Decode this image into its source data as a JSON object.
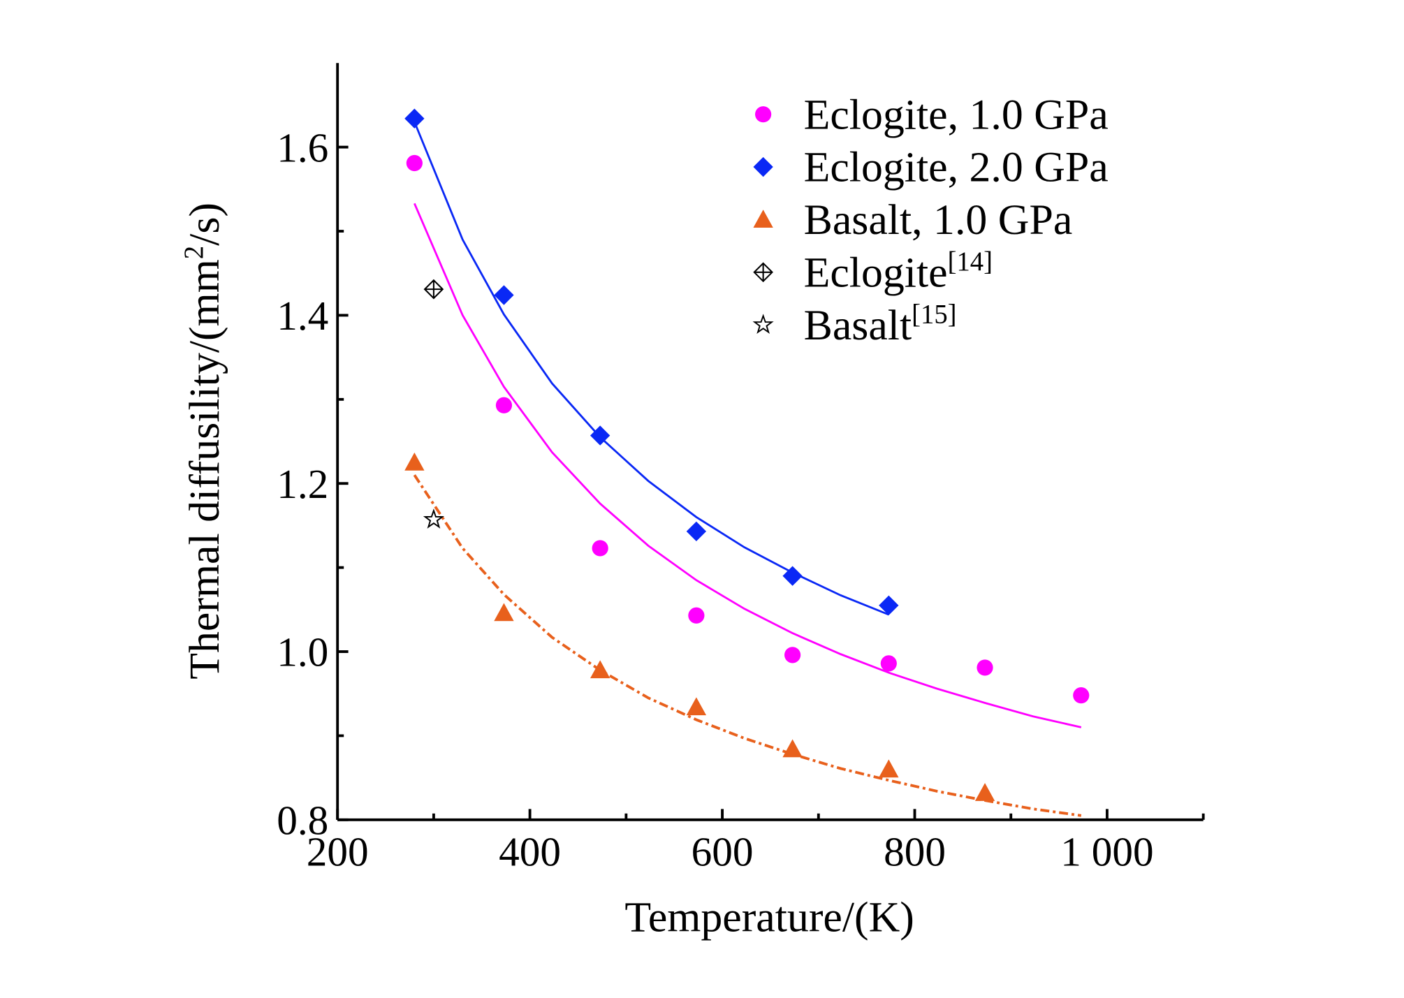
{
  "chart_data": {
    "type": "scatter",
    "title": "",
    "xlabel": "Temperature/(K)",
    "ylabel_parts": {
      "main": "Thermal diffusility/(mm",
      "sup": "2",
      "tail": "/s)"
    },
    "xlim": [
      200,
      1100
    ],
    "ylim": [
      0.8,
      1.7
    ],
    "x_ticks": [
      200,
      400,
      600,
      800,
      1000
    ],
    "x_tick_labels": [
      "200",
      "400",
      "600",
      "800",
      "1 000"
    ],
    "x_minor_ticks": [
      300,
      500,
      700,
      900,
      1100
    ],
    "y_ticks": [
      0.8,
      1.0,
      1.2,
      1.4,
      1.6
    ],
    "y_tick_labels": [
      "0.8",
      "1.0",
      "1.2",
      "1.4",
      "1.6"
    ],
    "y_minor_ticks": [
      0.9,
      1.1,
      1.3,
      1.5
    ],
    "grid": false,
    "legend_position": "top-right",
    "series": [
      {
        "name": "Eclogite, 1.0 GPa",
        "name_sup": "",
        "marker": "circle",
        "color": "#ff00ff",
        "x": [
          280,
          373,
          473,
          573,
          673,
          773,
          873,
          973
        ],
        "y": [
          1.581,
          1.293,
          1.123,
          1.043,
          0.996,
          0.986,
          0.981,
          0.948
        ]
      },
      {
        "name": "Eclogite, 2.0 GPa",
        "name_sup": "",
        "marker": "diamond",
        "color": "#0a28f5",
        "x": [
          280,
          373,
          473,
          573,
          673,
          773
        ],
        "y": [
          1.634,
          1.424,
          1.257,
          1.143,
          1.09,
          1.055
        ]
      },
      {
        "name": "Basalt, 1.0 GPa",
        "name_sup": "",
        "marker": "triangle",
        "color": "#e8601c",
        "x": [
          280,
          373,
          473,
          573,
          673,
          773,
          873
        ],
        "y": [
          1.225,
          1.046,
          0.978,
          0.934,
          0.884,
          0.86,
          0.832
        ]
      },
      {
        "name": "Eclogite",
        "name_sup": "[14]",
        "marker": "crossed-diamond",
        "color": "#000000",
        "x": [
          300
        ],
        "y": [
          1.431
        ]
      },
      {
        "name": "Basalt",
        "name_sup": "[15]",
        "marker": "star",
        "color": "#000000",
        "x": [
          300
        ],
        "y": [
          1.157
        ]
      }
    ],
    "fit_lines": [
      {
        "color": "#ff00ff",
        "style": "solid",
        "x": [
          280,
          330,
          373,
          423,
          473,
          523,
          573,
          623,
          673,
          723,
          773,
          823,
          873,
          923,
          973
        ],
        "y": [
          1.533,
          1.4,
          1.315,
          1.237,
          1.176,
          1.126,
          1.085,
          1.051,
          1.022,
          0.997,
          0.975,
          0.956,
          0.939,
          0.923,
          0.91
        ]
      },
      {
        "color": "#0a28f5",
        "style": "solid",
        "x": [
          280,
          330,
          373,
          423,
          473,
          523,
          573,
          623,
          673,
          723,
          773
        ],
        "y": [
          1.63,
          1.49,
          1.401,
          1.319,
          1.255,
          1.203,
          1.16,
          1.124,
          1.094,
          1.067,
          1.044
        ]
      },
      {
        "color": "#e8601c",
        "style": "dash-dot",
        "x": [
          280,
          330,
          373,
          423,
          473,
          523,
          573,
          623,
          673,
          723,
          773,
          823,
          873,
          923,
          973
        ],
        "y": [
          1.21,
          1.123,
          1.068,
          1.017,
          0.978,
          0.945,
          0.919,
          0.897,
          0.878,
          0.861,
          0.847,
          0.834,
          0.823,
          0.813,
          0.805
        ]
      }
    ]
  }
}
